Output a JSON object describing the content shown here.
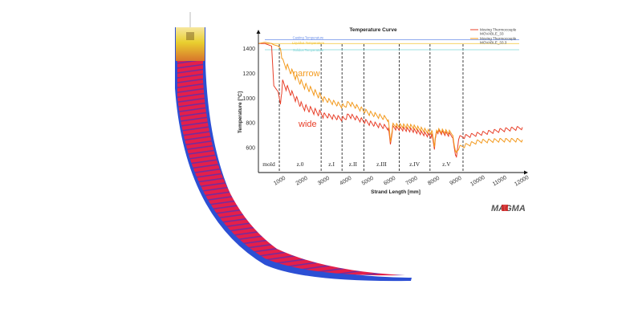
{
  "chart_data": {
    "type": "line",
    "title": "Temperature Curve",
    "xlabel": "Strand Length [mm]",
    "ylabel": "Temperature [°C]",
    "xlim": [
      0,
      12000
    ],
    "ylim": [
      400,
      1500
    ],
    "xticks": [
      1000,
      2000,
      3000,
      4000,
      5000,
      6000,
      7000,
      8000,
      9000,
      10000,
      11000,
      12000
    ],
    "yticks": [
      600,
      800,
      1000,
      1200,
      1400
    ],
    "grid": false,
    "legend_position": "top-right",
    "series": [
      {
        "name": "Moving Thermocouple MOVABLE_33",
        "color": "#e8402a",
        "annotation": "wide",
        "x": [
          0,
          300,
          600,
          700,
          900,
          1000,
          1100,
          2000,
          3000,
          3900,
          4100,
          5000,
          5900,
          6000,
          6100,
          7000,
          7900,
          8000,
          8100,
          8800,
          8900,
          9000,
          9100,
          10000,
          11000,
          12000
        ],
        "y": [
          1440,
          1440,
          1420,
          1100,
          1050,
          950,
          1120,
          930,
          860,
          830,
          860,
          800,
          760,
          620,
          760,
          740,
          690,
          600,
          730,
          700,
          600,
          520,
          680,
          710,
          740,
          760
        ]
      },
      {
        "name": "Moving Thermocouple MOVABLE_33.3",
        "color": "#f39a1e",
        "annotation": "narrow",
        "x": [
          0,
          300,
          600,
          700,
          900,
          1000,
          1100,
          2000,
          3000,
          3900,
          4100,
          5000,
          5900,
          6000,
          6100,
          7000,
          7900,
          8000,
          8100,
          8800,
          8900,
          9000,
          9100,
          10000,
          11000,
          12000
        ],
        "y": [
          1440,
          1450,
          1440,
          1430,
          1420,
          1400,
          1290,
          1110,
          990,
          930,
          960,
          880,
          830,
          640,
          780,
          770,
          720,
          620,
          740,
          720,
          620,
          560,
          600,
          650,
          660,
          660
        ]
      }
    ],
    "reference_lines": [
      {
        "label": "Casting Temperature",
        "y": 1470,
        "color": "#6a8ee8"
      },
      {
        "label": "Liquidus Temperature",
        "y": 1440,
        "color": "#f2c230"
      },
      {
        "label": "Solidus Temperature",
        "y": 1390,
        "color": "#7fd6d8"
      }
    ],
    "zones": [
      {
        "label": "mold",
        "from": 0,
        "to": 950
      },
      {
        "label": "z.0",
        "from": 950,
        "to": 2850
      },
      {
        "label": "z.I",
        "from": 2850,
        "to": 3800
      },
      {
        "label": "z.II",
        "from": 3800,
        "to": 4800
      },
      {
        "label": "z.III",
        "from": 4800,
        "to": 6400
      },
      {
        "label": "z.IV",
        "from": 6400,
        "to": 7800
      },
      {
        "label": "z.V",
        "from": 7800,
        "to": 9300
      }
    ]
  },
  "logo": {
    "text": "MAGMA"
  }
}
